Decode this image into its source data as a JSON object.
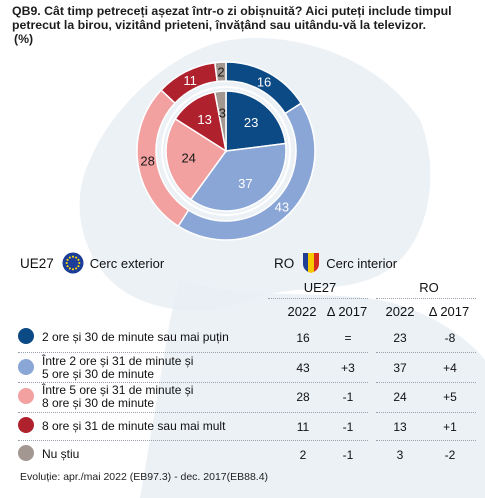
{
  "question": {
    "line1": "QB9. Cât timp petreceți așezat într-o zi obișnuită? Aici puteți include timpul",
    "line2": "petrecut la birou, vizitând prieteni, învățând sau uitându-vă la televizor.",
    "line3": "(%)"
  },
  "colors": {
    "c1": "#0c4a86",
    "c2": "#8aa6d6",
    "c3": "#f2a0a0",
    "c4": "#b0212e",
    "c5": "#a39791",
    "map": "#e9eef4"
  },
  "rings": {
    "outer": {
      "code": "UE27",
      "label": "Cerc exterior",
      "icon": "eu-flag-icon"
    },
    "inner": {
      "code": "RO",
      "label": "Cerc interior",
      "icon": "romania-flag-icon"
    }
  },
  "table": {
    "group_eu": "UE27",
    "group_ro": "RO",
    "col_year": "2022",
    "col_delta": "Δ 2017",
    "rows": [
      {
        "label1": "2 ore și 30 de minute sau mai puțin",
        "label2": "",
        "eu": "16",
        "eu_delta": "=",
        "ro": "23",
        "ro_delta": "-8"
      },
      {
        "label1": "Între 2 ore și 31 de minute și",
        "label2": "5 ore și 30 de minute",
        "eu": "43",
        "eu_delta": "+3",
        "ro": "37",
        "ro_delta": "+4"
      },
      {
        "label1": "Între 5 ore și 31 de minute și",
        "label2": "8 ore și 30 de minute",
        "eu": "28",
        "eu_delta": "-1",
        "ro": "24",
        "ro_delta": "+5"
      },
      {
        "label1": "8 ore și 31 de minute sau mai mult",
        "label2": "",
        "eu": "11",
        "eu_delta": "-1",
        "ro": "13",
        "ro_delta": "+1"
      },
      {
        "label1": "Nu știu",
        "label2": "",
        "eu": "2",
        "eu_delta": "-1",
        "ro": "3",
        "ro_delta": "-2"
      }
    ]
  },
  "footer": "Evoluție: apr./mai 2022 (EB97.3) - dec. 2017(EB88.4)",
  "chart_data": {
    "type": "pie",
    "subtype": "nested-donut",
    "categories": [
      "2 ore și 30 de minute sau mai puțin",
      "Între 2 ore și 31 de minute și 5 ore și 30 de minute",
      "Între 5 ore și 31 de minute și 8 ore și 30 de minute",
      "8 ore și 31 de minute sau mai mult",
      "Nu știu"
    ],
    "series": [
      {
        "name": "UE27",
        "ring": "outer",
        "values": [
          16,
          43,
          28,
          11,
          2
        ],
        "delta_2017": [
          "=",
          "+3",
          "-1",
          "-1",
          "-1"
        ]
      },
      {
        "name": "RO",
        "ring": "inner",
        "values": [
          23,
          37,
          24,
          13,
          3
        ],
        "delta_2017": [
          "-8",
          "+4",
          "+5",
          "+1",
          "-2"
        ]
      }
    ],
    "legend": "bottom"
  }
}
